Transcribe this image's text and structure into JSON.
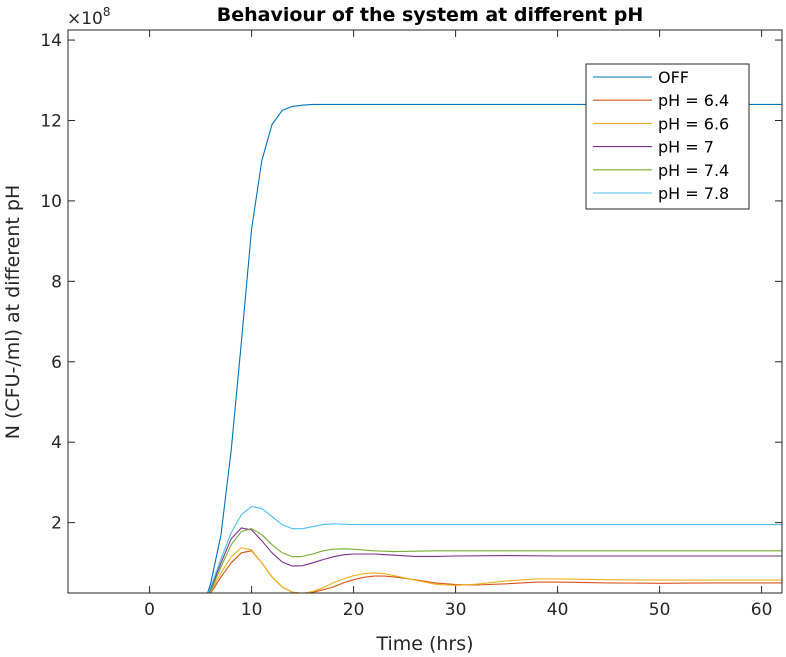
{
  "chart_data": {
    "type": "line",
    "title": "Behaviour of the system at different pH",
    "xlabel": "Time (hrs)",
    "ylabel": "N (CFU-/ml) at different pH",
    "y_multiplier": "×10",
    "y_exponent": "8",
    "xlim": [
      -8,
      62
    ],
    "ylim": [
      0.25,
      14.25
    ],
    "xticks": [
      0,
      10,
      20,
      30,
      40,
      50,
      60
    ],
    "yticks": [
      2,
      4,
      6,
      8,
      10,
      12,
      14
    ],
    "legend_position": "top-right",
    "series": [
      {
        "name": "OFF",
        "color": "#0072BD",
        "x": [
          -8,
          5.5,
          6,
          7,
          8,
          9,
          10,
          11,
          12,
          13,
          14,
          15,
          16,
          18,
          20,
          62
        ],
        "y": [
          0,
          0.1,
          0.5,
          1.7,
          3.8,
          6.5,
          9.3,
          11.0,
          11.9,
          12.25,
          12.35,
          12.38,
          12.4,
          12.4,
          12.4,
          12.4
        ]
      },
      {
        "name": "pH = 6.4",
        "color": "#D95319",
        "x": [
          -8,
          5.5,
          6,
          7,
          8,
          9,
          10,
          11,
          12,
          13,
          14,
          15,
          16,
          17,
          18,
          19,
          20,
          21,
          22,
          23,
          24,
          26,
          28,
          30,
          32,
          35,
          38,
          40,
          45,
          50,
          55,
          62
        ],
        "y": [
          0,
          0.1,
          0.25,
          0.65,
          1.0,
          1.25,
          1.3,
          1.0,
          0.65,
          0.4,
          0.27,
          0.24,
          0.27,
          0.33,
          0.4,
          0.5,
          0.58,
          0.64,
          0.67,
          0.67,
          0.65,
          0.58,
          0.5,
          0.46,
          0.45,
          0.48,
          0.52,
          0.52,
          0.5,
          0.49,
          0.5,
          0.5
        ]
      },
      {
        "name": "pH = 6.6",
        "color": "#EDB120",
        "x": [
          -8,
          5.5,
          6,
          7,
          8,
          9,
          10,
          11,
          12,
          13,
          14,
          15,
          16,
          17,
          18,
          19,
          20,
          21,
          22,
          23,
          24,
          26,
          28,
          30,
          32,
          35,
          38,
          40,
          45,
          50,
          55,
          62
        ],
        "y": [
          0,
          0.1,
          0.28,
          0.75,
          1.15,
          1.38,
          1.32,
          1.0,
          0.65,
          0.4,
          0.27,
          0.24,
          0.29,
          0.38,
          0.5,
          0.6,
          0.68,
          0.73,
          0.75,
          0.73,
          0.68,
          0.57,
          0.47,
          0.44,
          0.47,
          0.55,
          0.6,
          0.6,
          0.58,
          0.57,
          0.57,
          0.57
        ]
      },
      {
        "name": "pH = 7",
        "color": "#7E2F8E",
        "x": [
          -8,
          5.5,
          6,
          7,
          8,
          9,
          10,
          11,
          12,
          13,
          14,
          15,
          16,
          17,
          18,
          19,
          20,
          22,
          24,
          26,
          28,
          30,
          35,
          40,
          45,
          50,
          55,
          62
        ],
        "y": [
          0,
          0.1,
          0.35,
          1.0,
          1.6,
          1.87,
          1.82,
          1.55,
          1.25,
          1.02,
          0.92,
          0.93,
          1.0,
          1.08,
          1.15,
          1.2,
          1.22,
          1.22,
          1.19,
          1.16,
          1.16,
          1.17,
          1.18,
          1.17,
          1.17,
          1.17,
          1.17,
          1.17
        ]
      },
      {
        "name": "pH = 7.4",
        "color": "#77AC30",
        "x": [
          -8,
          5.5,
          6,
          7,
          8,
          9,
          10,
          11,
          12,
          13,
          14,
          15,
          16,
          17,
          18,
          19,
          20,
          22,
          24,
          26,
          28,
          30,
          35,
          40,
          45,
          50,
          55,
          62
        ],
        "y": [
          0,
          0.1,
          0.3,
          0.9,
          1.45,
          1.78,
          1.85,
          1.7,
          1.45,
          1.25,
          1.15,
          1.16,
          1.22,
          1.3,
          1.34,
          1.35,
          1.34,
          1.3,
          1.28,
          1.29,
          1.3,
          1.3,
          1.3,
          1.3,
          1.3,
          1.3,
          1.3,
          1.3
        ]
      },
      {
        "name": "pH = 7.8",
        "color": "#4DBEEE",
        "x": [
          -8,
          5.5,
          6,
          7,
          8,
          9,
          10,
          11,
          12,
          13,
          14,
          15,
          16,
          17,
          18,
          19,
          20,
          22,
          24,
          26,
          28,
          30,
          35,
          40,
          45,
          50,
          55,
          62
        ],
        "y": [
          0,
          0.1,
          0.4,
          1.1,
          1.75,
          2.2,
          2.4,
          2.35,
          2.15,
          1.95,
          1.85,
          1.85,
          1.9,
          1.95,
          1.97,
          1.96,
          1.95,
          1.95,
          1.95,
          1.95,
          1.95,
          1.95,
          1.95,
          1.95,
          1.95,
          1.95,
          1.95,
          1.95
        ]
      }
    ]
  }
}
